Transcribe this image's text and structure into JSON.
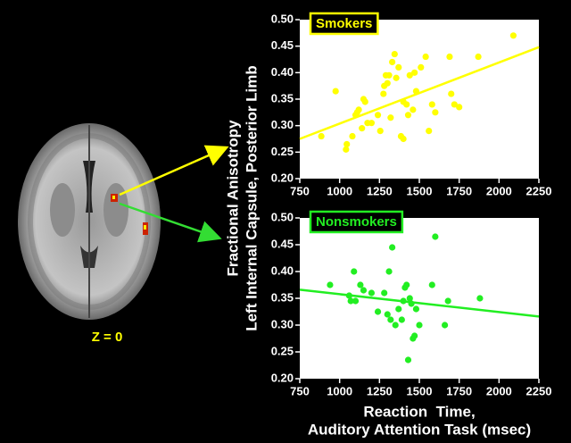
{
  "figure": {
    "slice_label": "Z = 0",
    "y_label": [
      "Fractional Anisotropy",
      "Left Internal Capsule, Posterior Limb"
    ],
    "x_label": [
      "Reaction  Time,",
      "Auditory Attention Task (msec)"
    ]
  },
  "chart_data": [
    {
      "type": "scatter",
      "title": "Smokers",
      "color": "#ffff00",
      "x": [
        885,
        975,
        1040,
        1045,
        1080,
        1100,
        1110,
        1120,
        1140,
        1150,
        1160,
        1175,
        1200,
        1240,
        1255,
        1275,
        1280,
        1290,
        1300,
        1310,
        1320,
        1330,
        1345,
        1355,
        1370,
        1385,
        1400,
        1400,
        1420,
        1430,
        1440,
        1460,
        1470,
        1480,
        1510,
        1540,
        1560,
        1580,
        1600,
        1690,
        1700,
        1720,
        1750,
        1870,
        2090
      ],
      "values": [
        0.28,
        0.365,
        0.255,
        0.265,
        0.28,
        0.32,
        0.325,
        0.33,
        0.295,
        0.35,
        0.345,
        0.305,
        0.305,
        0.32,
        0.29,
        0.36,
        0.375,
        0.395,
        0.38,
        0.395,
        0.315,
        0.42,
        0.435,
        0.39,
        0.41,
        0.28,
        0.275,
        0.345,
        0.34,
        0.32,
        0.395,
        0.33,
        0.4,
        0.365,
        0.41,
        0.43,
        0.29,
        0.34,
        0.325,
        0.43,
        0.36,
        0.34,
        0.335,
        0.43,
        0.47
      ],
      "fit_line": {
        "x": [
          750,
          2250
        ],
        "values": [
          0.275,
          0.448
        ]
      },
      "xlim": [
        750,
        2250
      ],
      "xticks": [
        750,
        1000,
        1250,
        1500,
        1750,
        2000,
        2250
      ],
      "ylim": [
        0.2,
        0.5
      ],
      "yticks": [
        {
          "value": 0.2,
          "label": "0.20"
        },
        0.25,
        {
          "value": 0.3,
          "label": "0.30"
        },
        0.35,
        {
          "value": 0.4,
          "label": "0.40"
        },
        0.45,
        {
          "value": 0.5,
          "label": "0.50"
        }
      ]
    },
    {
      "type": "scatter",
      "title": "Nonsmokers",
      "color": "#22ee22",
      "x": [
        940,
        1060,
        1070,
        1090,
        1100,
        1130,
        1150,
        1200,
        1240,
        1280,
        1300,
        1310,
        1320,
        1330,
        1350,
        1370,
        1390,
        1400,
        1410,
        1420,
        1430,
        1440,
        1450,
        1460,
        1470,
        1480,
        1500,
        1580,
        1600,
        1660,
        1680,
        1880
      ],
      "values": [
        0.375,
        0.355,
        0.345,
        0.4,
        0.345,
        0.375,
        0.365,
        0.36,
        0.325,
        0.36,
        0.32,
        0.4,
        0.31,
        0.445,
        0.3,
        0.33,
        0.31,
        0.345,
        0.37,
        0.375,
        0.235,
        0.35,
        0.34,
        0.275,
        0.28,
        0.33,
        0.3,
        0.375,
        0.465,
        0.3,
        0.345,
        0.35
      ],
      "fit_line": {
        "x": [
          750,
          2250
        ],
        "values": [
          0.366,
          0.316
        ]
      },
      "xlim": [
        750,
        2250
      ],
      "xticks": [
        750,
        1000,
        1250,
        1500,
        1750,
        2000,
        2250
      ],
      "ylim": [
        0.2,
        0.5
      ],
      "yticks": [
        {
          "value": 0.2,
          "label": "0.20"
        },
        0.25,
        {
          "value": 0.3,
          "label": "0.30"
        },
        0.35,
        {
          "value": 0.4,
          "label": "0.40"
        },
        0.45,
        {
          "value": 0.5,
          "label": "0.50"
        }
      ]
    }
  ]
}
